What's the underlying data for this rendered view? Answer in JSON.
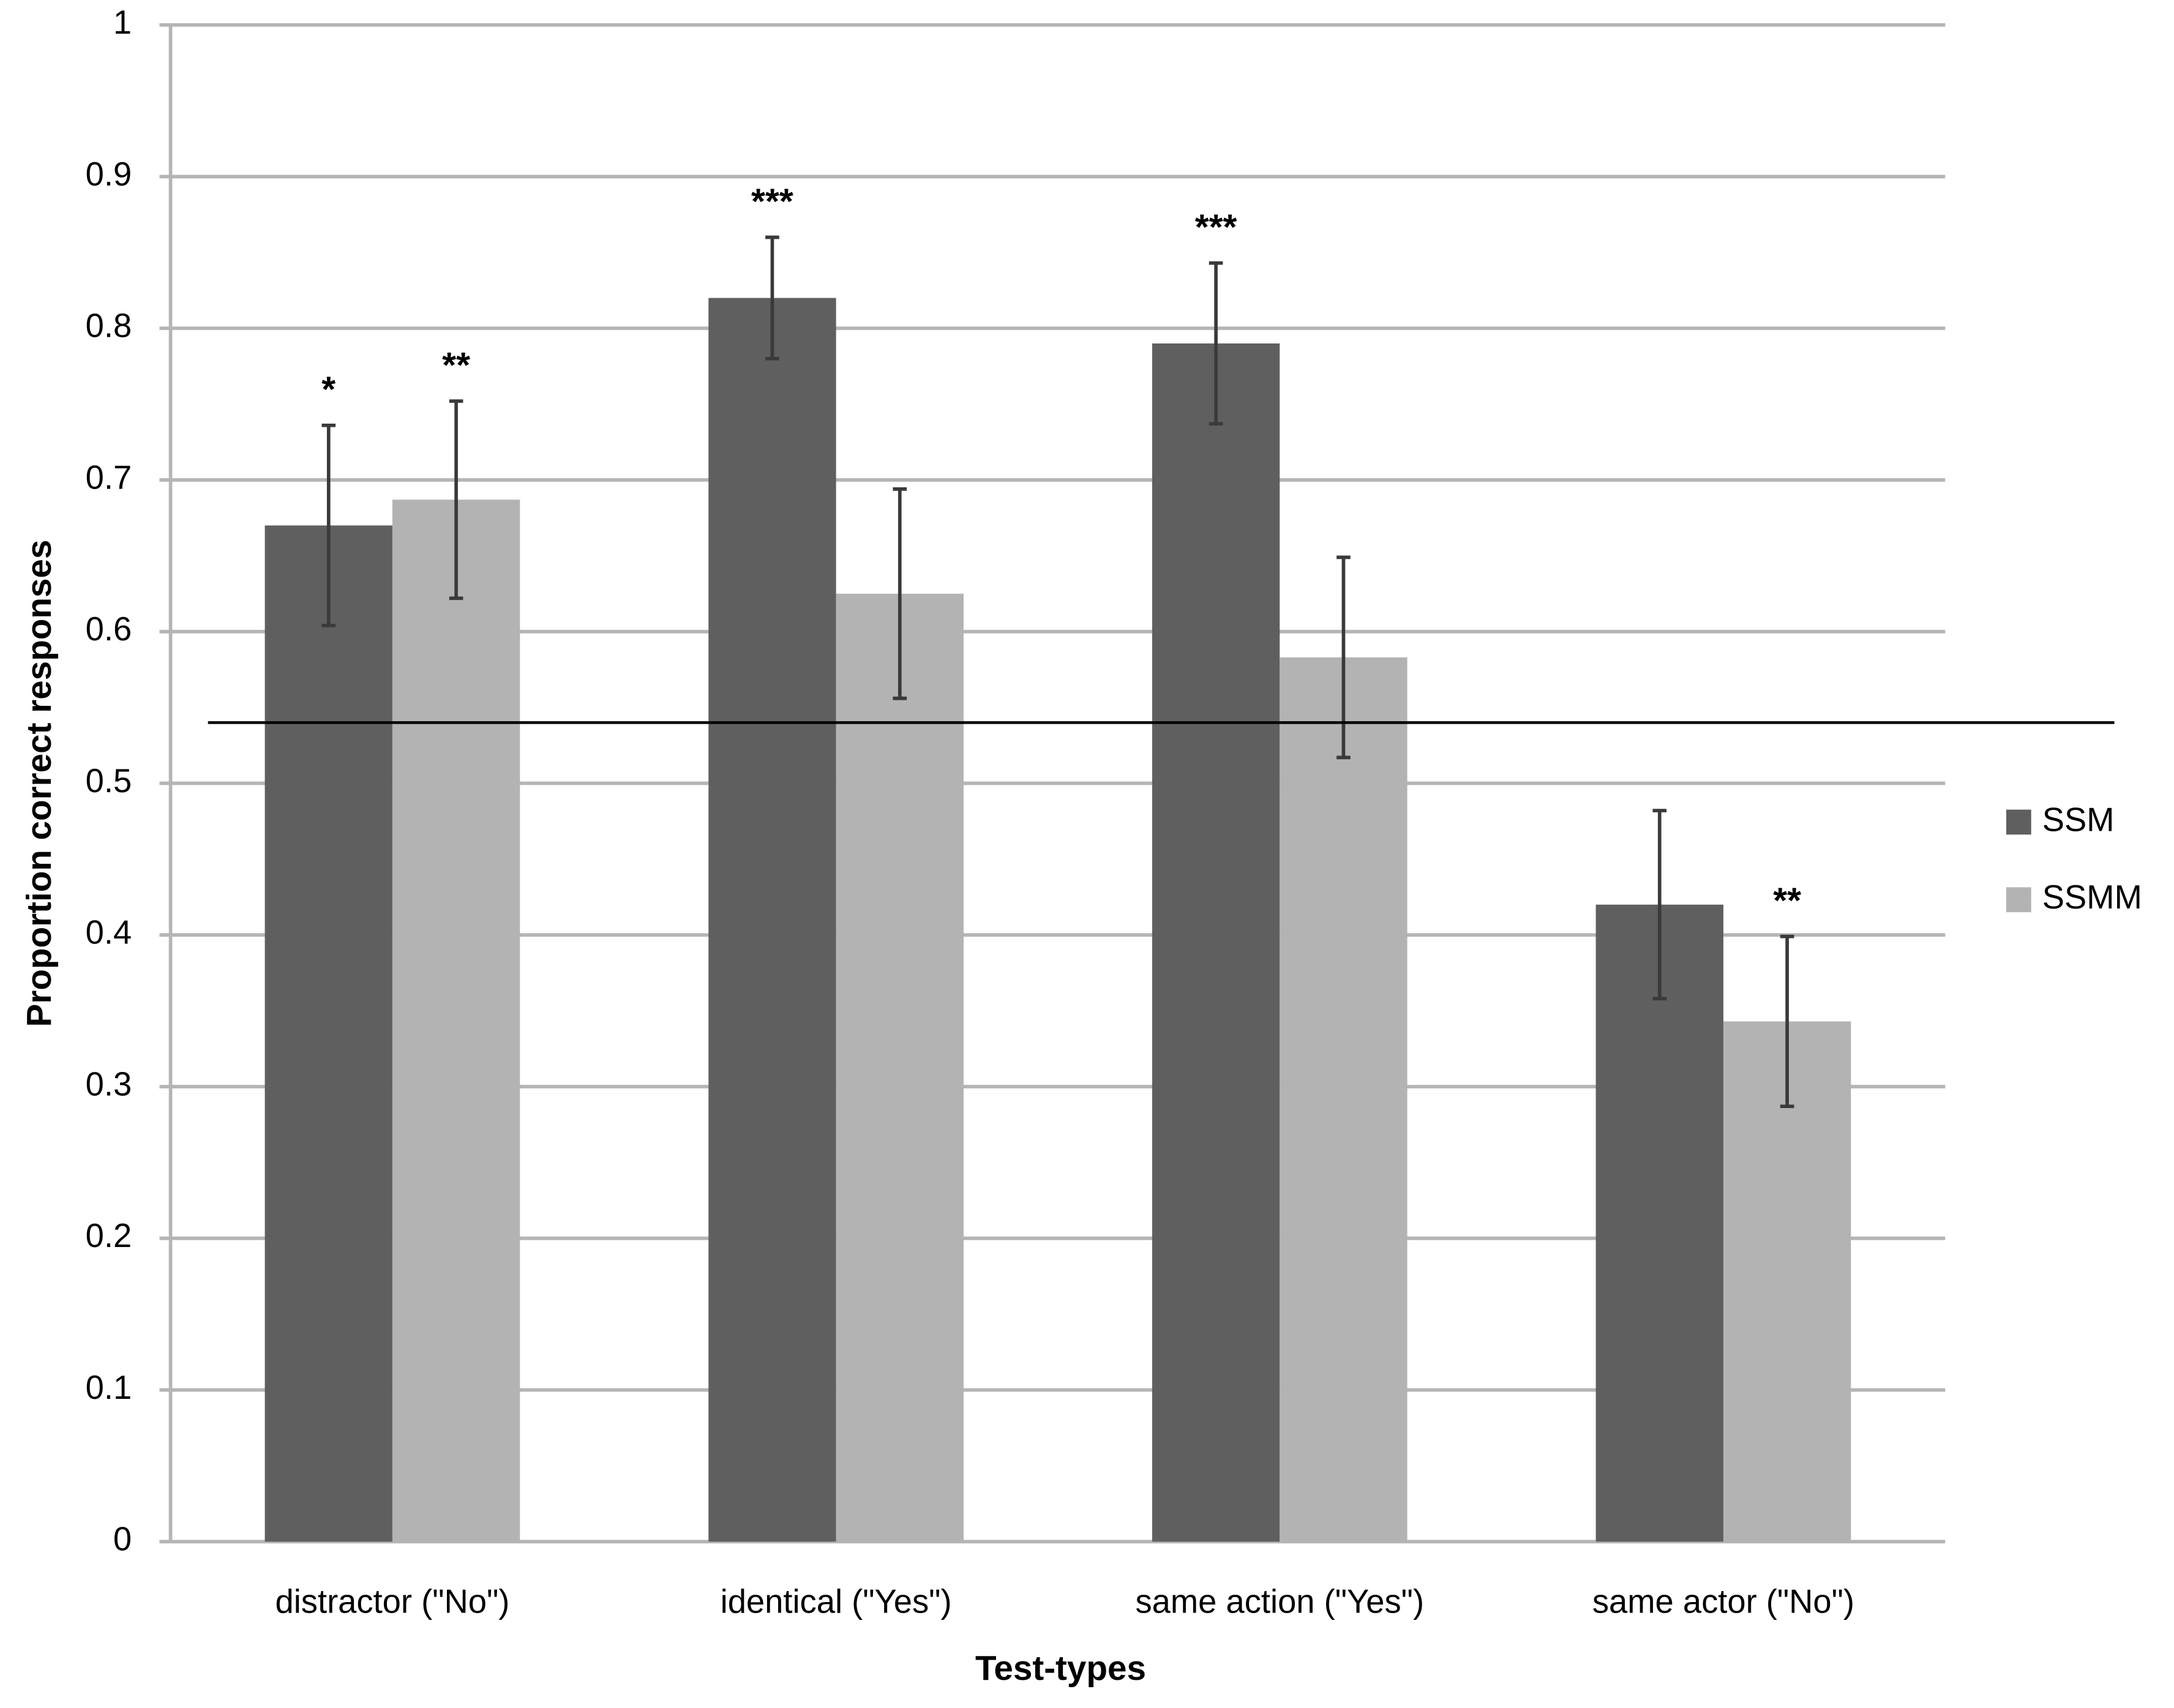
{
  "chart_data": {
    "type": "bar",
    "x_label": "Test-types",
    "y_label": "Proportion correct responses",
    "categories": [
      "distractor (\"No\")",
      "identical (\"Yes\")",
      "same action (\"Yes\")",
      "same actor (\"No\")"
    ],
    "series": [
      {
        "name": "SSM",
        "color": "#5f5f5f",
        "values": [
          0.67,
          0.82,
          0.79,
          0.42
        ],
        "errors": [
          0.066,
          0.04,
          0.053,
          0.062
        ],
        "annotations": [
          "*",
          "***",
          "***",
          null
        ]
      },
      {
        "name": "SSMM",
        "color": "#b3b3b3",
        "values": [
          0.687,
          0.625,
          0.583,
          0.343
        ],
        "errors": [
          0.065,
          0.069,
          0.066,
          0.056
        ],
        "annotations": [
          "**",
          null,
          null,
          "**"
        ]
      }
    ],
    "reference_line": 0.54,
    "ylim": [
      0,
      1
    ],
    "yticks": [
      0,
      0.1,
      0.2,
      0.3,
      0.4,
      0.5,
      0.6,
      0.7,
      0.8,
      0.9,
      1
    ],
    "grid": true,
    "legend": "right"
  }
}
